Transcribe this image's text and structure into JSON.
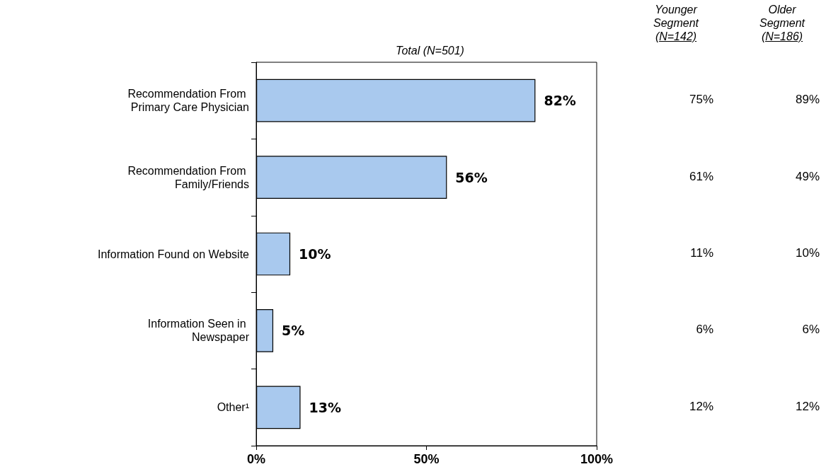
{
  "chart_data": [
    {
      "type": "bar",
      "orientation": "horizontal",
      "title": "Total (N=501)",
      "categories": [
        "Recommendation From Primary Care Physician",
        "Recommendation From Family/Friends",
        "Information Found on Website",
        "Information Seen in Newspaper",
        "Other¹"
      ],
      "values": [
        82,
        56,
        10,
        5,
        13
      ],
      "color": "#a9c9ee",
      "value_labels": [
        "82%",
        "56%",
        "10%",
        "5%",
        "13%"
      ],
      "xlim": [
        0,
        100
      ],
      "xticks": [
        {
          "value": 0,
          "label": "0%"
        },
        {
          "value": 50,
          "label": "50%"
        },
        {
          "value": 100,
          "label": "100%"
        }
      ]
    },
    {
      "type": "other",
      "title": "Younger Segment (N=142)",
      "categories": [
        null,
        null,
        null,
        null,
        null
      ],
      "values": [
        75,
        61,
        11,
        6,
        12
      ],
      "value_labels": [
        "75%",
        "61%",
        "11%",
        "6%",
        "12%"
      ]
    },
    {
      "type": "other",
      "title": "Older Segment (N=186)",
      "categories": [
        null,
        null,
        null,
        null,
        null
      ],
      "values": [
        89,
        49,
        10,
        6,
        12
      ],
      "value_labels": [
        "89%",
        "49%",
        "10%",
        "6%",
        "12%"
      ]
    }
  ]
}
